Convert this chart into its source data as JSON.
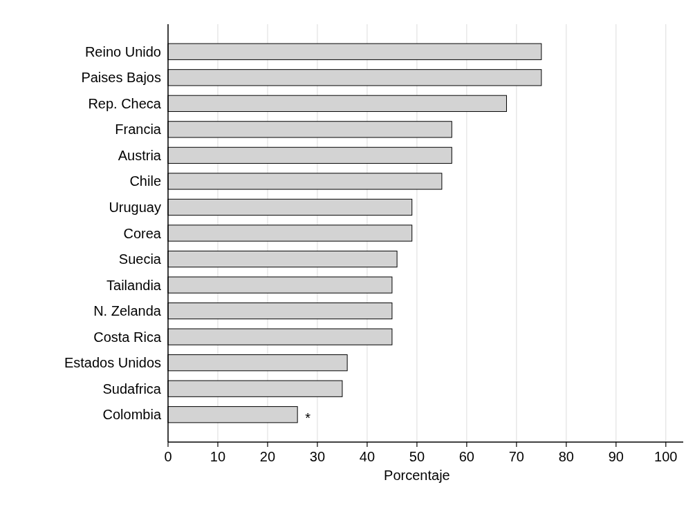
{
  "chart_data": {
    "type": "bar",
    "orientation": "horizontal",
    "xlabel": "Porcentaje",
    "categories": [
      "Reino Unido",
      "Paises Bajos",
      "Rep. Checa",
      "Francia",
      "Austria",
      "Chile",
      "Uruguay",
      "Corea",
      "Suecia",
      "Tailandia",
      "N. Zelanda",
      "Costa Rica",
      "Estados Unidos",
      "Sudafrica",
      "Colombia"
    ],
    "values": [
      75,
      75,
      68,
      57,
      57,
      55,
      49,
      49,
      46,
      45,
      45,
      45,
      36,
      35,
      26
    ],
    "color": "#d3d3d3",
    "xlim": [
      0,
      103.5
    ],
    "xticks": [
      0,
      10,
      20,
      30,
      40,
      50,
      60,
      70,
      80,
      90,
      100
    ],
    "grid": "x",
    "annotations": [
      "*"
    ]
  }
}
